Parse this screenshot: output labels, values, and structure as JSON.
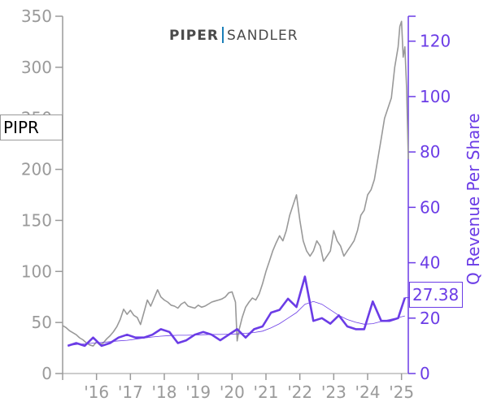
{
  "ticker": "PIPR",
  "logo": {
    "part1": "PIPER",
    "part2": "SANDLER"
  },
  "last_value_label": "27.38",
  "chart_data": {
    "type": "line",
    "title": "",
    "xlabel": "",
    "ylabel": "",
    "y2label": "Q Revenue Per Share",
    "x_tick_labels": [
      "'16",
      "'17",
      "'18",
      "'19",
      "'20",
      "'21",
      "'22",
      "'23",
      "'24",
      "'25"
    ],
    "x_range": [
      2015.0,
      2025.2
    ],
    "ylim": [
      0,
      350
    ],
    "y_ticks": [
      0,
      50,
      100,
      150,
      200,
      250,
      300,
      350
    ],
    "y2lim": [
      0,
      129
    ],
    "y2_ticks": [
      0,
      20,
      40,
      60,
      80,
      100,
      120
    ],
    "colors": {
      "price": "#999999",
      "revenue": "#6b3ce6",
      "logo_bar": "#1b7fb8"
    },
    "price_series": {
      "x": [
        2015.0,
        2015.1,
        2015.2,
        2015.3,
        2015.4,
        2015.5,
        2015.6,
        2015.7,
        2015.8,
        2015.9,
        2016.0,
        2016.1,
        2016.2,
        2016.3,
        2016.4,
        2016.5,
        2016.6,
        2016.7,
        2016.8,
        2016.9,
        2017.0,
        2017.1,
        2017.2,
        2017.3,
        2017.4,
        2017.5,
        2017.6,
        2017.7,
        2017.8,
        2017.9,
        2018.0,
        2018.1,
        2018.2,
        2018.3,
        2018.4,
        2018.5,
        2018.6,
        2018.7,
        2018.8,
        2018.9,
        2019.0,
        2019.1,
        2019.2,
        2019.3,
        2019.4,
        2019.5,
        2019.6,
        2019.7,
        2019.8,
        2019.9,
        2020.0,
        2020.1,
        2020.15,
        2020.2,
        2020.3,
        2020.4,
        2020.5,
        2020.6,
        2020.7,
        2020.8,
        2020.9,
        2021.0,
        2021.1,
        2021.2,
        2021.3,
        2021.4,
        2021.5,
        2021.6,
        2021.7,
        2021.8,
        2021.9,
        2022.0,
        2022.1,
        2022.2,
        2022.3,
        2022.4,
        2022.5,
        2022.6,
        2022.7,
        2022.8,
        2022.9,
        2023.0,
        2023.1,
        2023.2,
        2023.3,
        2023.4,
        2023.5,
        2023.6,
        2023.7,
        2023.8,
        2023.9,
        2024.0,
        2024.1,
        2024.2,
        2024.3,
        2024.4,
        2024.5,
        2024.6,
        2024.7,
        2024.8,
        2024.9,
        2024.95,
        2025.0,
        2025.05,
        2025.1,
        2025.15,
        2025.2
      ],
      "y": [
        47,
        45,
        42,
        40,
        38,
        35,
        33,
        30,
        28,
        27,
        31,
        28,
        30,
        34,
        37,
        41,
        46,
        53,
        63,
        58,
        62,
        57,
        55,
        48,
        60,
        72,
        66,
        74,
        82,
        75,
        72,
        70,
        67,
        66,
        64,
        68,
        70,
        66,
        65,
        64,
        67,
        65,
        66,
        68,
        70,
        71,
        72,
        73,
        75,
        79,
        80,
        70,
        32,
        42,
        55,
        65,
        70,
        74,
        72,
        78,
        88,
        100,
        110,
        120,
        128,
        135,
        130,
        140,
        155,
        165,
        175,
        150,
        130,
        120,
        115,
        120,
        130,
        125,
        110,
        115,
        120,
        140,
        130,
        125,
        115,
        120,
        125,
        130,
        140,
        155,
        160,
        175,
        180,
        190,
        210,
        230,
        250,
        260,
        270,
        300,
        320,
        340,
        345,
        310,
        320,
        280,
        210
      ]
    },
    "revenue_series": {
      "x": [
        2015.15,
        2015.4,
        2015.65,
        2015.9,
        2016.15,
        2016.4,
        2016.65,
        2016.9,
        2017.15,
        2017.4,
        2017.65,
        2017.9,
        2018.15,
        2018.4,
        2018.65,
        2018.9,
        2019.15,
        2019.4,
        2019.65,
        2019.9,
        2020.15,
        2020.4,
        2020.65,
        2020.9,
        2021.15,
        2021.4,
        2021.65,
        2021.9,
        2022.15,
        2022.4,
        2022.65,
        2022.9,
        2023.15,
        2023.4,
        2023.65,
        2023.9,
        2024.15,
        2024.4,
        2024.65,
        2024.9,
        2025.1
      ],
      "y": [
        10,
        11,
        10,
        13,
        10,
        11,
        13,
        14,
        13,
        13,
        14,
        16,
        15,
        11,
        12,
        14,
        15,
        14,
        12,
        14,
        16,
        13,
        16,
        17,
        22,
        23,
        27,
        24,
        35,
        19,
        20,
        18,
        21,
        17,
        16,
        16,
        26,
        19,
        19,
        20,
        27.38
      ]
    },
    "revenue_ma": {
      "x": [
        2015.15,
        2015.4,
        2015.65,
        2015.9,
        2016.15,
        2016.4,
        2016.65,
        2016.9,
        2017.15,
        2017.4,
        2017.65,
        2017.9,
        2018.15,
        2018.4,
        2018.65,
        2018.9,
        2019.15,
        2019.4,
        2019.65,
        2019.9,
        2020.15,
        2020.4,
        2020.65,
        2020.9,
        2021.15,
        2021.4,
        2021.65,
        2021.9,
        2022.15,
        2022.4,
        2022.65,
        2022.9,
        2023.15,
        2023.4,
        2023.65,
        2023.9,
        2024.15,
        2024.4,
        2024.65,
        2024.9,
        2025.1
      ],
      "y": [
        10,
        10.5,
        10.7,
        11,
        11.2,
        11.5,
        11.8,
        12,
        12.4,
        12.8,
        13.2,
        13.5,
        13.7,
        13.8,
        13.8,
        13.9,
        14,
        14.1,
        14.1,
        14.2,
        14.3,
        14.5,
        14.8,
        15.3,
        16.5,
        18,
        20,
        22,
        25,
        26,
        25,
        23,
        21,
        19.5,
        18.5,
        17.8,
        18,
        18.8,
        19.5,
        20.2,
        20.8
      ]
    }
  }
}
